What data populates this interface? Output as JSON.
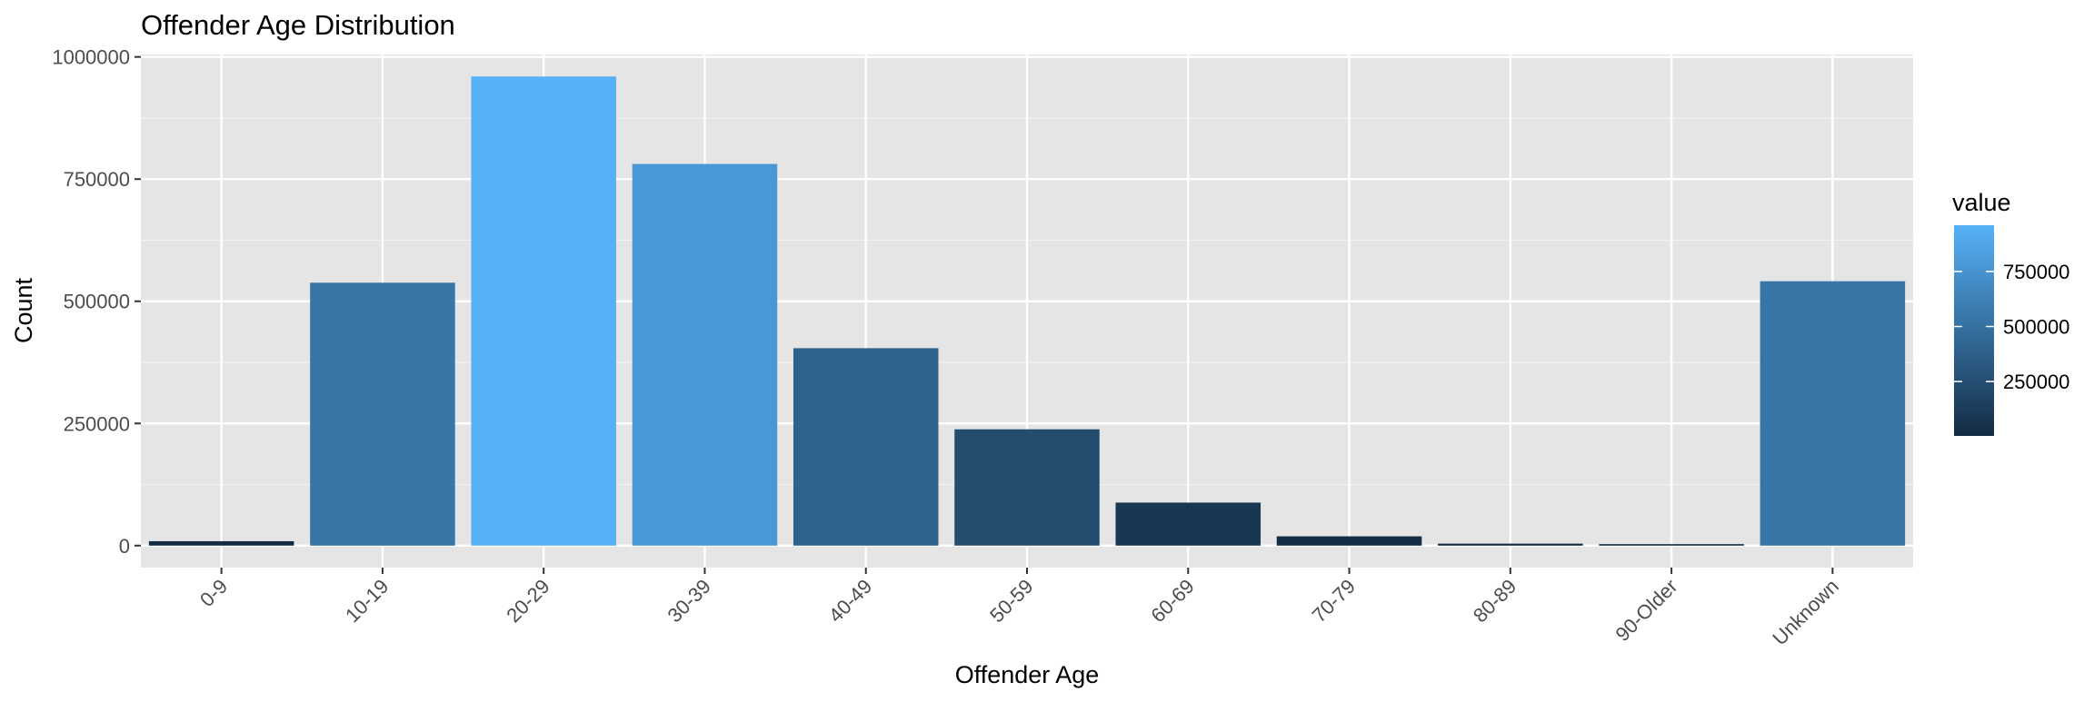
{
  "chart_data": {
    "type": "bar",
    "title": "Offender Age Distribution",
    "xlabel": "Offender Age",
    "ylabel": "Count",
    "categories": [
      "0-9",
      "10-19",
      "20-29",
      "30-39",
      "40-49",
      "50-59",
      "60-69",
      "70-79",
      "80-89",
      "90-Older",
      "Unknown"
    ],
    "values": [
      9000,
      538000,
      960000,
      781000,
      404000,
      238000,
      88000,
      19000,
      4000,
      3000,
      541000
    ],
    "ylim": [
      -45000,
      1005000
    ],
    "yticks": [
      0,
      250000,
      500000,
      750000,
      1000000
    ],
    "ytick_labels": [
      "0",
      "250000",
      "500000",
      "750000",
      "1000000"
    ],
    "grid": true,
    "background_color": "#E5E5E5",
    "legend": {
      "title": "value",
      "placement": "right",
      "min": 3000,
      "max": 960000,
      "ticks": [
        250000,
        500000,
        750000
      ],
      "tick_labels": [
        "250000",
        "500000",
        "750000"
      ],
      "color_low": "#132B43",
      "color_high": "#56B1F7"
    }
  }
}
